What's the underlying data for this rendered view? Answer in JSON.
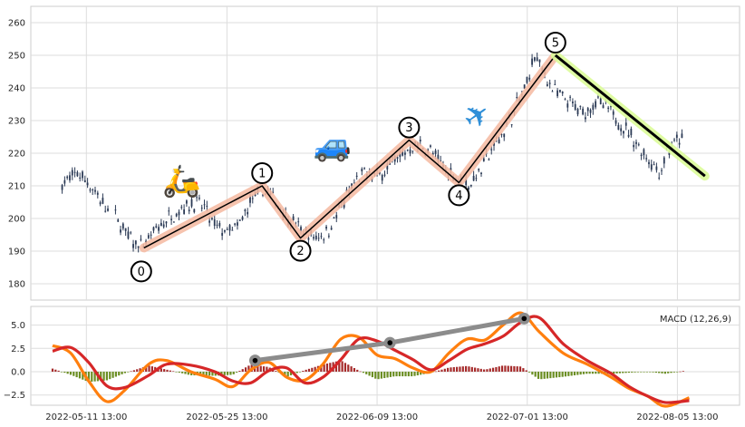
{
  "chart_data": [
    {
      "type": "candlestick",
      "panel": "price",
      "xlabel": "",
      "ylabel": "",
      "x_tick_labels": [
        "2022-05-11 13:00",
        "2022-05-25 13:00",
        "2022-06-09 13:00",
        "2022-07-01 13:00",
        "2022-08-05 13:00"
      ],
      "ylim": [
        175,
        265
      ],
      "y_ticks": [
        180,
        190,
        200,
        210,
        220,
        230,
        240,
        250,
        260
      ],
      "grid": true,
      "price_path": [
        [
          0.02,
          211
        ],
        [
          0.04,
          214
        ],
        [
          0.06,
          210
        ],
        [
          0.08,
          204
        ],
        [
          0.1,
          200
        ],
        [
          0.12,
          194
        ],
        [
          0.14,
          191
        ],
        [
          0.16,
          196
        ],
        [
          0.18,
          200
        ],
        [
          0.2,
          203
        ],
        [
          0.22,
          205
        ],
        [
          0.24,
          203
        ],
        [
          0.25,
          198
        ],
        [
          0.27,
          196
        ],
        [
          0.29,
          197
        ],
        [
          0.31,
          205
        ],
        [
          0.33,
          209
        ],
        [
          0.35,
          205
        ],
        [
          0.37,
          200
        ],
        [
          0.39,
          196
        ],
        [
          0.41,
          194
        ],
        [
          0.43,
          196
        ],
        [
          0.45,
          203
        ],
        [
          0.47,
          210
        ],
        [
          0.49,
          214
        ],
        [
          0.51,
          213
        ],
        [
          0.53,
          217
        ],
        [
          0.55,
          220
        ],
        [
          0.57,
          223
        ],
        [
          0.59,
          221
        ],
        [
          0.61,
          216
        ],
        [
          0.63,
          213
        ],
        [
          0.65,
          210
        ],
        [
          0.67,
          215
        ],
        [
          0.69,
          222
        ],
        [
          0.71,
          228
        ],
        [
          0.72,
          232
        ],
        [
          0.74,
          240
        ],
        [
          0.755,
          250
        ],
        [
          0.77,
          244
        ],
        [
          0.79,
          238
        ],
        [
          0.81,
          235
        ],
        [
          0.83,
          232
        ],
        [
          0.85,
          236
        ],
        [
          0.87,
          233
        ],
        [
          0.89,
          229
        ],
        [
          0.91,
          224
        ],
        [
          0.93,
          219
        ],
        [
          0.95,
          214
        ],
        [
          0.96,
          220
        ],
        [
          0.98,
          224
        ]
      ],
      "elliott_wave": {
        "points": [
          {
            "label": "0",
            "x": 0.143,
            "y": 191
          },
          {
            "label": "1",
            "x": 0.328,
            "y": 210
          },
          {
            "label": "2",
            "x": 0.388,
            "y": 194
          },
          {
            "label": "3",
            "x": 0.558,
            "y": 224
          },
          {
            "label": "4",
            "x": 0.636,
            "y": 211
          },
          {
            "label": "5",
            "x": 0.787,
            "y": 250
          }
        ],
        "correction": {
          "from": {
            "x": 0.787,
            "y": 250
          },
          "to": {
            "x": 1.021,
            "y": 213
          }
        }
      },
      "icons": [
        {
          "name": "scooter-icon",
          "glyph": "🛵",
          "x": 0.202,
          "y": 211
        },
        {
          "name": "car-icon",
          "glyph": "🚙",
          "x": 0.438,
          "y": 222
        },
        {
          "name": "airplane-icon",
          "glyph": "✈",
          "x": 0.666,
          "y": 231
        }
      ],
      "colors": {
        "candle": "#2b3a55",
        "wave_glow": "#f4b8a0",
        "correction_glow": "#dcfc9a",
        "line": "#000000"
      }
    },
    {
      "type": "line",
      "panel": "macd",
      "title": "MACD (12,26,9)",
      "ylim": [
        -3.6,
        7.0
      ],
      "y_ticks": [
        -2.5,
        0.0,
        2.5,
        5.0
      ],
      "y_tick_labels": [
        "−2.5",
        "0.0",
        "2.5",
        "5.0"
      ],
      "series": [
        {
          "color": "#ff7f0e",
          "values": [
            [
              0.0,
              2.8
            ],
            [
              0.03,
              2.0
            ],
            [
              0.06,
              -1.0
            ],
            [
              0.09,
              -3.2
            ],
            [
              0.12,
              -2.0
            ],
            [
              0.16,
              0.8
            ],
            [
              0.19,
              1.2
            ],
            [
              0.23,
              0.0
            ],
            [
              0.27,
              -0.8
            ],
            [
              0.3,
              -1.6
            ],
            [
              0.33,
              0.2
            ],
            [
              0.36,
              1.0
            ],
            [
              0.39,
              -0.6
            ],
            [
              0.42,
              -0.9
            ],
            [
              0.45,
              0.8
            ],
            [
              0.48,
              3.5
            ],
            [
              0.51,
              3.7
            ],
            [
              0.54,
              1.8
            ],
            [
              0.57,
              1.4
            ],
            [
              0.6,
              0.4
            ],
            [
              0.63,
              0.0
            ],
            [
              0.66,
              2.0
            ],
            [
              0.69,
              3.5
            ],
            [
              0.72,
              3.4
            ],
            [
              0.75,
              5.0
            ],
            [
              0.78,
              6.3
            ],
            [
              0.81,
              4.3
            ],
            [
              0.85,
              2.0
            ],
            [
              0.89,
              0.8
            ],
            [
              0.93,
              -0.6
            ],
            [
              0.96,
              -1.8
            ],
            [
              0.99,
              -2.6
            ],
            [
              1.02,
              -3.7
            ],
            [
              1.06,
              -2.8
            ]
          ]
        },
        {
          "color": "#d62728",
          "values": [
            [
              0.0,
              2.2
            ],
            [
              0.03,
              2.6
            ],
            [
              0.06,
              1.0
            ],
            [
              0.09,
              -1.5
            ],
            [
              0.12,
              -1.7
            ],
            [
              0.16,
              -0.4
            ],
            [
              0.19,
              0.8
            ],
            [
              0.23,
              0.7
            ],
            [
              0.27,
              0.0
            ],
            [
              0.3,
              -1.0
            ],
            [
              0.33,
              -1.2
            ],
            [
              0.36,
              0.1
            ],
            [
              0.39,
              0.4
            ],
            [
              0.42,
              -1.2
            ],
            [
              0.45,
              -0.6
            ],
            [
              0.48,
              1.3
            ],
            [
              0.51,
              3.5
            ],
            [
              0.54,
              3.3
            ],
            [
              0.57,
              2.3
            ],
            [
              0.6,
              1.3
            ],
            [
              0.63,
              0.2
            ],
            [
              0.66,
              1.2
            ],
            [
              0.69,
              2.4
            ],
            [
              0.72,
              3.0
            ],
            [
              0.75,
              3.8
            ],
            [
              0.78,
              5.3
            ],
            [
              0.81,
              5.8
            ],
            [
              0.85,
              3.0
            ],
            [
              0.89,
              1.2
            ],
            [
              0.93,
              -0.2
            ],
            [
              0.96,
              -1.6
            ],
            [
              0.99,
              -2.6
            ],
            [
              1.02,
              -3.3
            ],
            [
              1.06,
              -3.1
            ]
          ]
        }
      ],
      "histogram": {
        "positive_color": "#a52a2a",
        "negative_color": "#6b8e23"
      },
      "signal_trend": {
        "color": "#8c8c8c",
        "points": [
          {
            "x": 0.317,
            "y": 1.2
          },
          {
            "x": 0.528,
            "y": 3.1
          },
          {
            "x": 0.738,
            "y": 5.7
          }
        ]
      },
      "grid": true
    }
  ]
}
